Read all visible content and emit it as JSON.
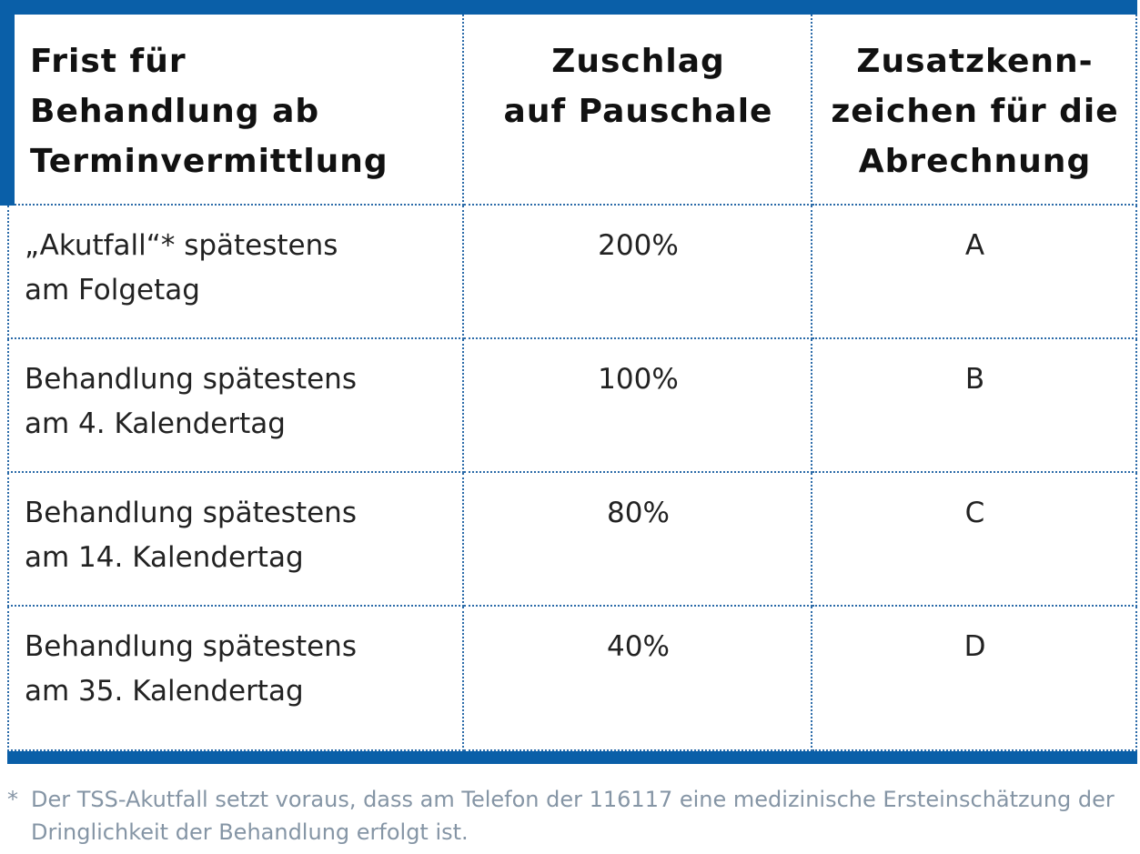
{
  "table": {
    "header": [
      [
        "Frist für",
        "Behandlung ab",
        "Terminvermittlung"
      ],
      [
        "Zuschlag",
        "auf Pauschale"
      ],
      [
        "Zusatzkenn-",
        "zeichen für die",
        "Abrechnung"
      ]
    ],
    "rows": [
      [
        [
          "„Akutfall“* spätestens",
          "am Folgetag"
        ],
        [
          "200%"
        ],
        [
          "A"
        ]
      ],
      [
        [
          "Behandlung spätestens",
          "am 4. Kalendertag"
        ],
        [
          "100%"
        ],
        [
          "B"
        ]
      ],
      [
        [
          "Behandlung spätestens",
          "am 14. Kalendertag"
        ],
        [
          "80%"
        ],
        [
          "C"
        ]
      ],
      [
        [
          "Behandlung spätestens",
          "am 35. Kalendertag"
        ],
        [
          "40%"
        ],
        [
          "D"
        ]
      ]
    ]
  },
  "footnote": {
    "marker": "*",
    "lines": [
      "Der TSS-Akutfall setzt voraus, dass am Telefon der 116117 eine medizinische Ersteinschätzung der",
      "Dringlichkeit der Behandlung erfolgt ist."
    ]
  }
}
